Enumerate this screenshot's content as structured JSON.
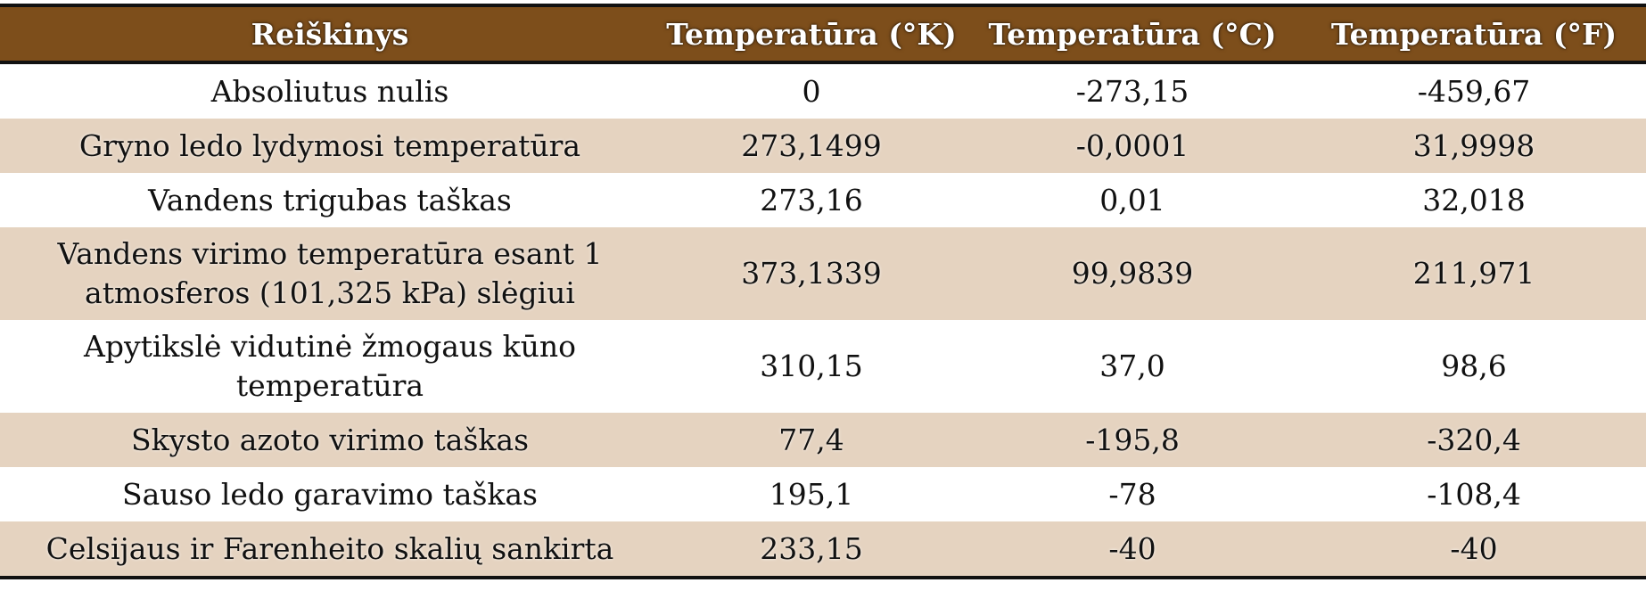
{
  "table": {
    "headers": [
      "Reiškinys",
      "Temperatūra (°K)",
      "Temperatūra (°C)",
      "Temperatūra (°F)"
    ],
    "rows": [
      [
        "Absoliutus nulis",
        "0",
        "-273,15",
        "-459,67"
      ],
      [
        "Gryno ledo lydymosi temperatūra",
        "273,1499",
        "-0,0001",
        "31,9998"
      ],
      [
        "Vandens trigubas taškas",
        "273,16",
        "0,01",
        "32,018"
      ],
      [
        "Vandens virimo temperatūra esant 1 atmosferos (101,325 kPa) slėgiui",
        "373,1339",
        "99,9839",
        "211,971"
      ],
      [
        "Apytikslė vidutinė žmogaus kūno temperatūra",
        "310,15",
        "37,0",
        "98,6"
      ],
      [
        "Skysto azoto virimo taškas",
        "77,4",
        "-195,8",
        "-320,4"
      ],
      [
        "Sauso ledo garavimo taškas",
        "195,1",
        "-78",
        "-108,4"
      ],
      [
        "Celsijaus ir Farenheito skalių sankirta",
        "233,15",
        "-40",
        "-40"
      ]
    ]
  },
  "colors": {
    "header_background": "#7d4e1b",
    "header_text": "#ffffff",
    "stripe_background": "#e5d3c0",
    "rule": "#111111"
  }
}
